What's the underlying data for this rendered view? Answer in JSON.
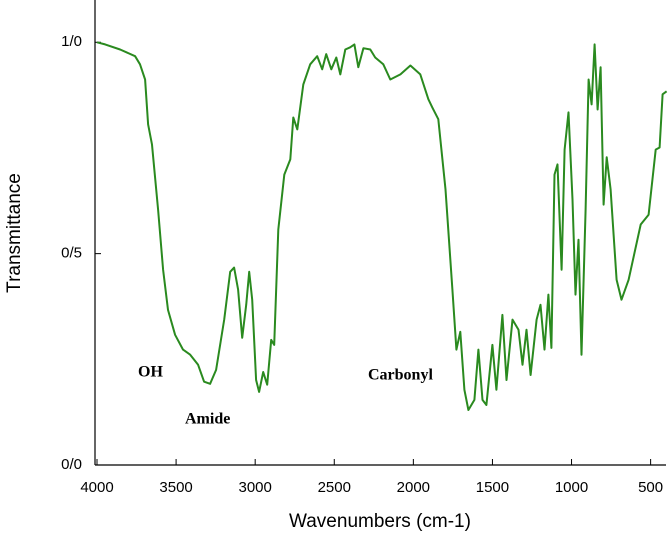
{
  "chart_data": {
    "type": "line",
    "x_label": "Wavenumbers (cm-1)",
    "y_label": "Transmittance",
    "annotations": [
      "OH",
      "Amide",
      "Carbonyl"
    ],
    "xlim": [
      4000,
      399
    ],
    "ylim": [
      0,
      1.1
    ],
    "xticks": [
      4000,
      3500,
      3000,
      2500,
      2000,
      1500,
      1000,
      500
    ],
    "yticks": [
      {
        "value": 0,
        "label": "0/0"
      },
      {
        "value": 0.5,
        "label": "0/5"
      },
      {
        "value": 1.0,
        "label": "1/0"
      }
    ],
    "series": [
      {
        "color": "#2a8a1f",
        "x": [
          4000,
          3949,
          3854,
          3759,
          3728,
          3696,
          3677,
          3652,
          3614,
          3582,
          3551,
          3506,
          3456,
          3411,
          3361,
          3323,
          3285,
          3247,
          3196,
          3158,
          3133,
          3108,
          3082,
          3057,
          3038,
          3019,
          2994,
          2975,
          2949,
          2924,
          2899,
          2880,
          2854,
          2816,
          2778,
          2759,
          2734,
          2696,
          2652,
          2608,
          2576,
          2551,
          2519,
          2487,
          2462,
          2430,
          2399,
          2373,
          2348,
          2316,
          2272,
          2241,
          2190,
          2146,
          2082,
          2019,
          1956,
          1905,
          1880,
          1842,
          1797,
          1753,
          1728,
          1703,
          1677,
          1652,
          1614,
          1589,
          1563,
          1538,
          1500,
          1475,
          1437,
          1411,
          1373,
          1335,
          1310,
          1285,
          1259,
          1221,
          1196,
          1171,
          1146,
          1127,
          1108,
          1089,
          1063,
          1044,
          1019,
          994,
          975,
          956,
          937,
          911,
          892,
          873,
          854,
          835,
          816,
          797,
          778,
          753,
          715,
          684,
          639,
          563,
          513,
          468,
          443,
          424,
          399
        ],
        "values": [
          1.0,
          0.995,
          0.983,
          0.967,
          0.948,
          0.912,
          0.806,
          0.758,
          0.604,
          0.462,
          0.367,
          0.308,
          0.273,
          0.261,
          0.237,
          0.197,
          0.192,
          0.225,
          0.344,
          0.457,
          0.467,
          0.415,
          0.301,
          0.379,
          0.457,
          0.391,
          0.201,
          0.173,
          0.22,
          0.19,
          0.296,
          0.284,
          0.557,
          0.687,
          0.723,
          0.822,
          0.794,
          0.9,
          0.948,
          0.967,
          0.936,
          0.972,
          0.936,
          0.964,
          0.924,
          0.983,
          0.988,
          0.995,
          0.941,
          0.986,
          0.983,
          0.964,
          0.948,
          0.912,
          0.924,
          0.945,
          0.924,
          0.865,
          0.846,
          0.818,
          0.652,
          0.415,
          0.273,
          0.315,
          0.178,
          0.13,
          0.154,
          0.273,
          0.154,
          0.142,
          0.284,
          0.178,
          0.355,
          0.201,
          0.344,
          0.32,
          0.237,
          0.32,
          0.213,
          0.344,
          0.379,
          0.273,
          0.403,
          0.277,
          0.687,
          0.711,
          0.462,
          0.746,
          0.834,
          0.628,
          0.403,
          0.533,
          0.261,
          0.604,
          0.912,
          0.853,
          0.995,
          0.841,
          0.941,
          0.616,
          0.728,
          0.652,
          0.438,
          0.391,
          0.438,
          0.569,
          0.592,
          0.746,
          0.751,
          0.877,
          0.884
        ]
      }
    ]
  }
}
